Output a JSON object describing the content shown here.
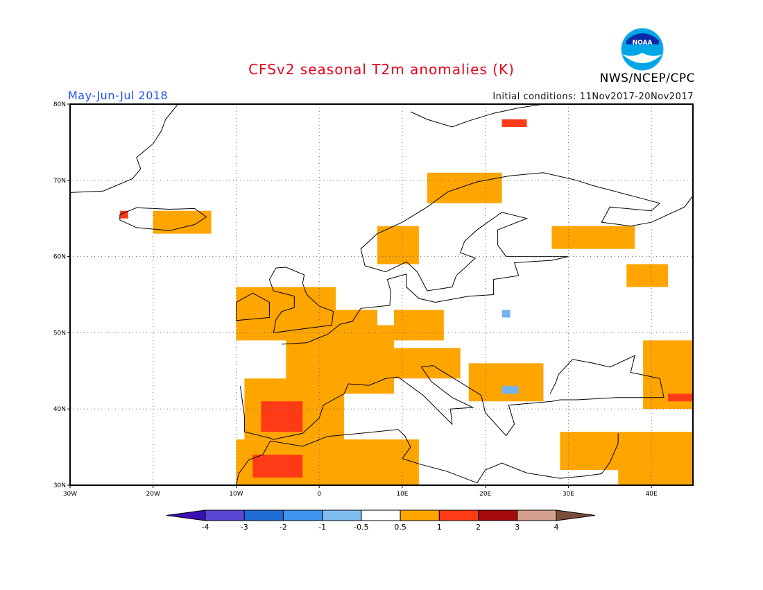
{
  "header": {
    "title": "CFSv2 seasonal T2m anomalies (K)",
    "organization": "NWS/NCEP/CPC",
    "logo_text": "NOAA",
    "period": "May-Jun-Jul 2018",
    "initial_conditions": "Initial conditions: 11Nov2017-20Nov2017"
  },
  "map": {
    "lon_range": [
      -30,
      45
    ],
    "lat_range": [
      30,
      80
    ],
    "lon_ticks": [
      {
        "value": -30,
        "label": "30W"
      },
      {
        "value": -20,
        "label": "20W"
      },
      {
        "value": -10,
        "label": "10W"
      },
      {
        "value": 0,
        "label": "0"
      },
      {
        "value": 10,
        "label": "10E"
      },
      {
        "value": 20,
        "label": "20E"
      },
      {
        "value": 30,
        "label": "30E"
      },
      {
        "value": 40,
        "label": "40E"
      }
    ],
    "lat_ticks": [
      {
        "value": 80,
        "label": "80N"
      },
      {
        "value": 70,
        "label": "70N"
      },
      {
        "value": 60,
        "label": "60N"
      },
      {
        "value": 50,
        "label": "50N"
      },
      {
        "value": 40,
        "label": "40N"
      },
      {
        "value": 30,
        "label": "30N"
      }
    ],
    "grid": "dotted",
    "anomaly_colors": {
      "warm_0.5_1": "#ffa500",
      "warm_1_2": "#ff3a16",
      "cool_-1_-0.5": "#73b4f0"
    },
    "anomaly_regions": [
      {
        "category": "warm_0.5_1",
        "lon": [
          -10,
          2
        ],
        "lat": [
          49,
          56
        ]
      },
      {
        "category": "warm_0.5_1",
        "lon": [
          -4,
          9
        ],
        "lat": [
          42,
          51
        ]
      },
      {
        "category": "warm_0.5_1",
        "lon": [
          2,
          7
        ],
        "lat": [
          49,
          53
        ]
      },
      {
        "category": "warm_0.5_1",
        "lon": [
          9,
          15
        ],
        "lat": [
          49,
          53
        ]
      },
      {
        "category": "warm_0.5_1",
        "lon": [
          9,
          17
        ],
        "lat": [
          44,
          48
        ]
      },
      {
        "category": "warm_0.5_1",
        "lon": [
          -9,
          3
        ],
        "lat": [
          36,
          44
        ]
      },
      {
        "category": "warm_0.5_1",
        "lon": [
          -10,
          12
        ],
        "lat": [
          30,
          36
        ]
      },
      {
        "category": "warm_0.5_1",
        "lon": [
          7,
          12
        ],
        "lat": [
          59,
          64
        ]
      },
      {
        "category": "warm_0.5_1",
        "lon": [
          13,
          22
        ],
        "lat": [
          67,
          71
        ]
      },
      {
        "category": "warm_0.5_1",
        "lon": [
          28,
          38
        ],
        "lat": [
          61,
          64
        ]
      },
      {
        "category": "warm_0.5_1",
        "lon": [
          18,
          27
        ],
        "lat": [
          41,
          46
        ]
      },
      {
        "category": "warm_0.5_1",
        "lon": [
          29,
          45
        ],
        "lat": [
          32,
          37
        ]
      },
      {
        "category": "warm_0.5_1",
        "lon": [
          36,
          45
        ],
        "lat": [
          30,
          35
        ]
      },
      {
        "category": "warm_0.5_1",
        "lon": [
          39,
          45
        ],
        "lat": [
          40,
          49
        ]
      },
      {
        "category": "warm_0.5_1",
        "lon": [
          37,
          42
        ],
        "lat": [
          56,
          59
        ]
      },
      {
        "category": "warm_0.5_1",
        "lon": [
          -20,
          -13
        ],
        "lat": [
          63,
          66
        ]
      },
      {
        "category": "warm_1_2",
        "lon": [
          -7,
          -2
        ],
        "lat": [
          37,
          41
        ]
      },
      {
        "category": "warm_1_2",
        "lon": [
          -8,
          -2
        ],
        "lat": [
          31,
          34
        ]
      },
      {
        "category": "warm_1_2",
        "lon": [
          -24,
          -23
        ],
        "lat": [
          65,
          66
        ]
      },
      {
        "category": "warm_1_2",
        "lon": [
          22,
          25
        ],
        "lat": [
          77,
          78
        ]
      },
      {
        "category": "warm_1_2",
        "lon": [
          42,
          45
        ],
        "lat": [
          41,
          42
        ]
      },
      {
        "category": "cool_-1_-0.5",
        "lon": [
          22,
          23
        ],
        "lat": [
          52,
          53
        ]
      },
      {
        "category": "cool_-1_-0.5",
        "lon": [
          22,
          24
        ],
        "lat": [
          42,
          43
        ]
      }
    ]
  },
  "legend": {
    "bins": [
      {
        "color": "#3a10b4"
      },
      {
        "color": "#5a48d4"
      },
      {
        "color": "#1f6bd4"
      },
      {
        "color": "#3f93ee"
      },
      {
        "color": "#7ebcf0"
      },
      {
        "color": "#ffffff"
      },
      {
        "color": "#ffa500"
      },
      {
        "color": "#ff3a16"
      },
      {
        "color": "#a50a0a"
      },
      {
        "color": "#d2a08c"
      },
      {
        "color": "#7a4c3a"
      }
    ],
    "labels": [
      "-4",
      "-3",
      "-2",
      "-1",
      "-0.5",
      "0.5",
      "1",
      "2",
      "3",
      "4"
    ]
  }
}
